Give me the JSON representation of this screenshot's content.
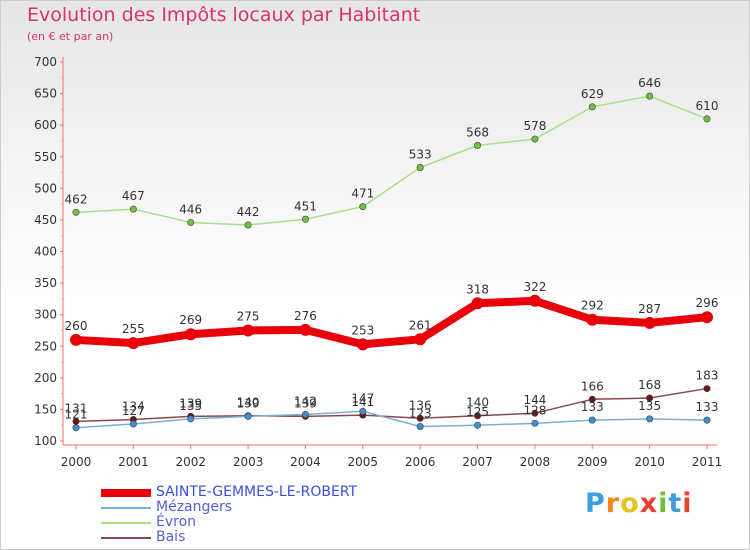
{
  "header": {
    "title": "Evolution des Impôts locaux par Habitant",
    "subtitle": "(en € et par an)"
  },
  "logo": {
    "text": "Proxiti",
    "colors": [
      "#3a9ee0",
      "#ef8a1e",
      "#e6c51d",
      "#e8412f",
      "#6fbf3f",
      "#3a9ee0",
      "#e8412f"
    ]
  },
  "chart_data": {
    "type": "line",
    "title": "Evolution des Impôts locaux par Habitant",
    "subtitle": "(en € et par an)",
    "xlabel": "",
    "ylabel": "",
    "x": [
      "2000",
      "2001",
      "2002",
      "2003",
      "2004",
      "2005",
      "2006",
      "2007",
      "2008",
      "2009",
      "2010",
      "2011"
    ],
    "ylim": [
      100,
      700
    ],
    "yticks": [
      100,
      150,
      200,
      250,
      300,
      350,
      400,
      450,
      500,
      550,
      600,
      650,
      700
    ],
    "grid": false,
    "legend": "bottom-left",
    "series": [
      {
        "name": "SAINTE-GEMMES-LE-ROBERT",
        "color": "#e8000b",
        "marker_color": "#e8000b",
        "line_width": 8,
        "values": [
          260,
          255,
          269,
          275,
          276,
          253,
          261,
          318,
          322,
          292,
          287,
          296
        ],
        "labels": [
          "260",
          "255",
          "269",
          "275",
          "276",
          "253",
          "261",
          "318",
          "322",
          "292",
          "287",
          "296"
        ]
      },
      {
        "name": "Mézangers",
        "color": "#79aed6",
        "marker_color": "#3f8fd0",
        "line_width": 1.5,
        "values": [
          121,
          127,
          135,
          139,
          142,
          147,
          123,
          125,
          128,
          133,
          135,
          133
        ],
        "labels": [
          "121",
          "127",
          "135",
          "139",
          "142",
          "147",
          "123",
          "125",
          "128",
          "133",
          "135",
          "133"
        ]
      },
      {
        "name": "Évron",
        "color": "#a8e08a",
        "marker_color": "#6fc03f",
        "line_width": 1.5,
        "values": [
          462,
          467,
          446,
          442,
          451,
          471,
          533,
          568,
          578,
          629,
          646,
          610
        ],
        "labels": [
          "462",
          "467",
          "446",
          "442",
          "451",
          "471",
          "533",
          "568",
          "578",
          "629",
          "646",
          "610"
        ]
      },
      {
        "name": "Bais",
        "color": "#8a4a4a",
        "marker_color": "#6b1515",
        "line_width": 1.5,
        "values": [
          131,
          134,
          139,
          140,
          139,
          141,
          136,
          140,
          144,
          166,
          168,
          183
        ],
        "labels": [
          "131",
          "134",
          "139",
          "140",
          "139",
          "141",
          "136",
          "140",
          "144",
          "166",
          "168",
          "183"
        ]
      }
    ]
  }
}
